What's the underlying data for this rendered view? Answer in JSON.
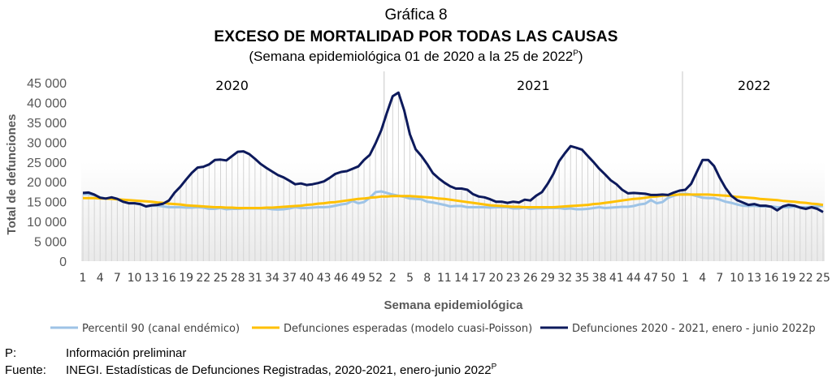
{
  "title": {
    "line1": "Gráfica 8",
    "line2": "EXCESO DE MORTALIDAD POR TODAS LAS CAUSAS",
    "line3": "(Semana epidemiológica 01 de 2020 a la 25 de 2022",
    "line3_sup": "P",
    "line3_end": ")"
  },
  "footnotes": [
    {
      "key": "P:",
      "text": "Información preliminar",
      "sup": ""
    },
    {
      "key": "Fuente:",
      "text": "INEGI. Estadísticas de Defunciones Registradas, 2020-2021, enero-junio 2022",
      "sup": "P"
    }
  ],
  "chart_data": {
    "type": "line",
    "xlabel": "Semana epidemiológica",
    "ylabel": "Total de defunciones",
    "ylim": [
      0,
      45000
    ],
    "yticks": [
      "0",
      "5 000",
      "10 000",
      "15 000",
      "20 000",
      "25 000",
      "30 000",
      "35 000",
      "40 000",
      "45 000"
    ],
    "year_groups": [
      {
        "label": "2020",
        "weeks": 53
      },
      {
        "label": "2021",
        "weeks": 52
      },
      {
        "label": "2022",
        "weeks": 25
      }
    ],
    "grid": false,
    "legend_position": "bottom",
    "series": [
      {
        "name": "Percentil 90 (canal endémico)",
        "color": "#9dc3e6",
        "values": [
          16900,
          16900,
          16600,
          16100,
          15800,
          15900,
          15600,
          15000,
          14600,
          14600,
          14300,
          13800,
          14000,
          14000,
          13800,
          13600,
          13600,
          13600,
          13500,
          13500,
          13600,
          13500,
          13200,
          13200,
          13400,
          13100,
          13200,
          13200,
          13300,
          13300,
          13300,
          13300,
          13300,
          13100,
          13000,
          13100,
          13300,
          13600,
          13400,
          13400,
          13500,
          13600,
          13600,
          13700,
          14000,
          14300,
          14500,
          15200,
          14600,
          14900,
          16000,
          17400,
          17600,
          17200,
          16800,
          16500,
          16200,
          15800,
          15700,
          15600,
          15000,
          14800,
          14500,
          14200,
          13800,
          13900,
          13900,
          13600,
          13600,
          13600,
          13600,
          13500,
          13600,
          13600,
          13600,
          13300,
          13300,
          13500,
          13200,
          13300,
          13300,
          13400,
          13400,
          13400,
          13200,
          13300,
          13100,
          13100,
          13200,
          13400,
          13600,
          13400,
          13500,
          13600,
          13700,
          13700,
          13900,
          14300,
          14500,
          15400,
          14600,
          14900,
          16000,
          16500,
          16900,
          17000,
          16800,
          16400,
          16000,
          15900,
          15900,
          15500,
          15000,
          14700,
          14300,
          14000,
          13900,
          14000,
          13800,
          13800,
          13800,
          13600,
          13600,
          13600,
          13800,
          13600,
          13600,
          13700,
          13800,
          13900
        ]
      },
      {
        "name": "Defunciones esperadas (modelo cuasi-Poisson)",
        "color": "#ffc000",
        "values": [
          15900,
          15900,
          15900,
          15800,
          15800,
          15700,
          15600,
          15500,
          15400,
          15300,
          15200,
          15100,
          15000,
          14800,
          14700,
          14500,
          14400,
          14300,
          14100,
          14000,
          13900,
          13800,
          13700,
          13600,
          13600,
          13500,
          13500,
          13400,
          13400,
          13400,
          13400,
          13400,
          13500,
          13500,
          13600,
          13700,
          13800,
          13900,
          14000,
          14200,
          14300,
          14500,
          14600,
          14800,
          14900,
          15100,
          15300,
          15500,
          15700,
          15800,
          16000,
          16100,
          16300,
          16300,
          16400,
          16400,
          16400,
          16400,
          16300,
          16200,
          16100,
          16000,
          15800,
          15700,
          15500,
          15300,
          15100,
          14900,
          14700,
          14500,
          14300,
          14100,
          14000,
          13900,
          13800,
          13700,
          13700,
          13600,
          13600,
          13600,
          13600,
          13600,
          13600,
          13700,
          13800,
          13900,
          14000,
          14100,
          14200,
          14400,
          14500,
          14700,
          14900,
          15100,
          15300,
          15500,
          15700,
          15800,
          16000,
          16200,
          16300,
          16500,
          16600,
          16700,
          16800,
          16800,
          16800,
          16800,
          16800,
          16800,
          16700,
          16600,
          16500,
          16400,
          16200,
          16100,
          16000,
          15900,
          15700,
          15600,
          15500,
          15400,
          15200,
          15100,
          15000,
          14800,
          14700,
          14500,
          14400,
          14200
        ]
      },
      {
        "name": "Defunciones 2020 - 2021, enero - junio 2022p",
        "color": "#0d1a5c",
        "values": [
          17200,
          17300,
          16800,
          16000,
          15800,
          16100,
          15700,
          15000,
          14600,
          14600,
          14400,
          13800,
          14100,
          14200,
          14500,
          15300,
          17300,
          18800,
          20600,
          22300,
          23600,
          23800,
          24400,
          25500,
          25600,
          25400,
          26500,
          27600,
          27700,
          27000,
          25800,
          24500,
          23500,
          22600,
          21700,
          21100,
          20300,
          19400,
          19600,
          19200,
          19400,
          19700,
          20100,
          21000,
          22000,
          22500,
          22700,
          23300,
          23900,
          25500,
          26800,
          29700,
          33000,
          37500,
          41600,
          42500,
          38000,
          32000,
          28200,
          26500,
          24500,
          22200,
          20900,
          19800,
          18900,
          18300,
          18300,
          18000,
          16900,
          16300,
          16100,
          15600,
          15000,
          15000,
          14700,
          15000,
          14800,
          15500,
          15300,
          16500,
          17400,
          19500,
          22000,
          25200,
          27200,
          29000,
          28600,
          28100,
          26500,
          25000,
          23300,
          21900,
          20400,
          19400,
          18000,
          17100,
          17200,
          17100,
          17000,
          16700,
          16700,
          16800,
          16700,
          17300,
          17800,
          18000,
          19500,
          22500,
          25500,
          25500,
          24000,
          21000,
          18500,
          16500,
          15400,
          14800,
          14200,
          14400,
          14000,
          14000,
          13700,
          12800,
          13800,
          14200,
          14000,
          13500,
          13200,
          13600,
          13200,
          12400
        ]
      }
    ]
  }
}
